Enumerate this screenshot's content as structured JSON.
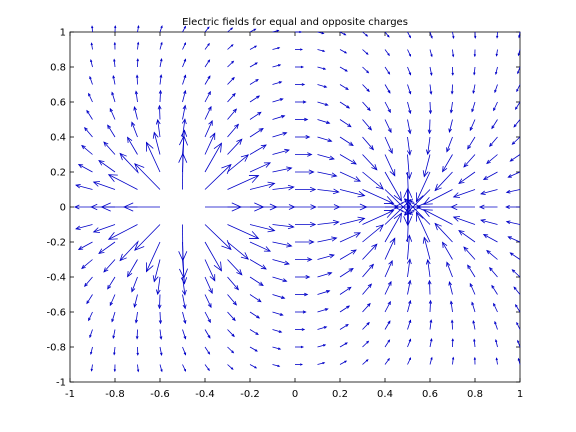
{
  "chart_data": {
    "type": "quiver",
    "title": "Electric fields for equal and opposite charges",
    "xlabel": "",
    "ylabel": "",
    "xlim": [
      -1,
      1
    ],
    "ylim": [
      -1,
      1
    ],
    "xticks": [
      -1,
      -0.8,
      -0.6,
      -0.4,
      -0.2,
      0,
      0.2,
      0.4,
      0.6,
      0.8,
      1
    ],
    "yticks": [
      -1,
      -0.8,
      -0.6,
      -0.4,
      -0.2,
      0,
      0.2,
      0.4,
      0.6,
      0.8,
      1
    ],
    "xtick_labels": [
      "-1",
      "-0.8",
      "-0.6",
      "-0.4",
      "-0.2",
      "0",
      "0.2",
      "0.4",
      "0.6",
      "0.8",
      "1"
    ],
    "ytick_labels": [
      "-1",
      "-0.8",
      "-0.6",
      "-0.4",
      "-0.2",
      "0",
      "0.2",
      "0.4",
      "0.6",
      "0.8",
      "1"
    ],
    "grid": false,
    "legend": "none",
    "arrow_color": "#0000c8",
    "charges": [
      {
        "x": -0.5,
        "y": 0,
        "sign": 1
      },
      {
        "x": 0.5,
        "y": 0,
        "sign": -1
      }
    ],
    "field_grid": {
      "start": -0.9,
      "stop": 1.0,
      "step": 0.1
    }
  }
}
